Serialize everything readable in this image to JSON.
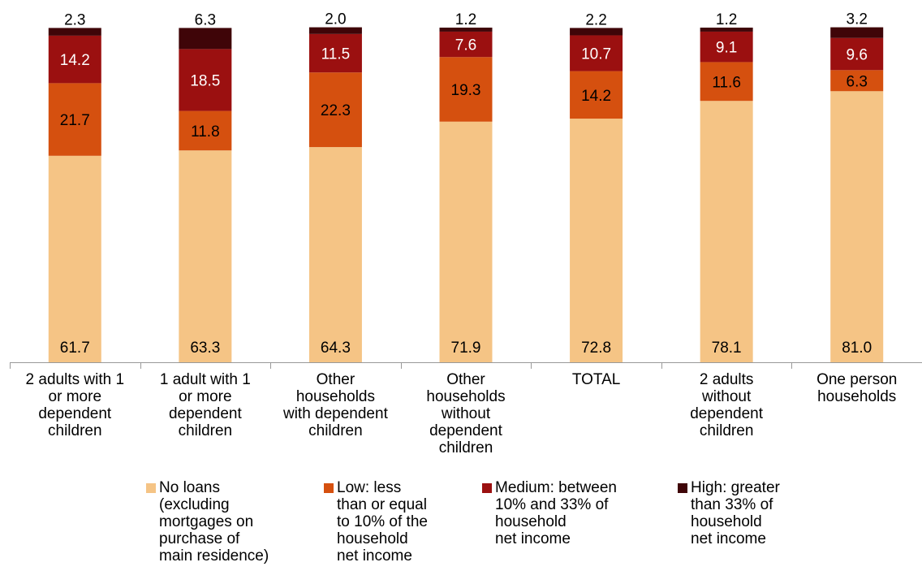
{
  "chart_data": {
    "type": "bar",
    "stacked": true,
    "categories": [
      "2 adults with 1\nor more\ndependent\nchildren",
      "1 adult with 1\nor more\ndependent\nchildren",
      "Other\nhouseholds\nwith dependent\nchildren",
      "Other\nhouseholds\nwithout\ndependent\nchildren",
      "TOTAL",
      "2 adults\nwithout\ndependent\nchildren",
      "One person\nhouseholds"
    ],
    "series": [
      {
        "name": "No loans\n(excluding\nmortgages on\npurchase of\nmain residence)",
        "color": "#F5C485",
        "values": [
          61.7,
          63.3,
          64.3,
          71.9,
          72.8,
          78.1,
          81.0
        ]
      },
      {
        "name": "Low: less\nthan or equal\nto 10% of the\nhousehold\nnet income",
        "color": "#D5500F",
        "values": [
          21.7,
          11.8,
          22.3,
          19.3,
          14.2,
          11.6,
          6.3
        ]
      },
      {
        "name": "Medium: between\n10% and 33% of\nhousehold\nnet income",
        "color": "#9B1010",
        "values": [
          14.2,
          18.5,
          11.5,
          7.6,
          10.7,
          9.1,
          9.6
        ]
      },
      {
        "name": "High: greater\nthan 33% of\nhousehold\nnet income",
        "color": "#3F0508",
        "values": [
          2.3,
          6.3,
          2.0,
          1.2,
          2.2,
          1.2,
          3.2
        ]
      }
    ],
    "ylim": [
      0,
      100
    ],
    "grid": false,
    "legend_position": "bottom"
  }
}
